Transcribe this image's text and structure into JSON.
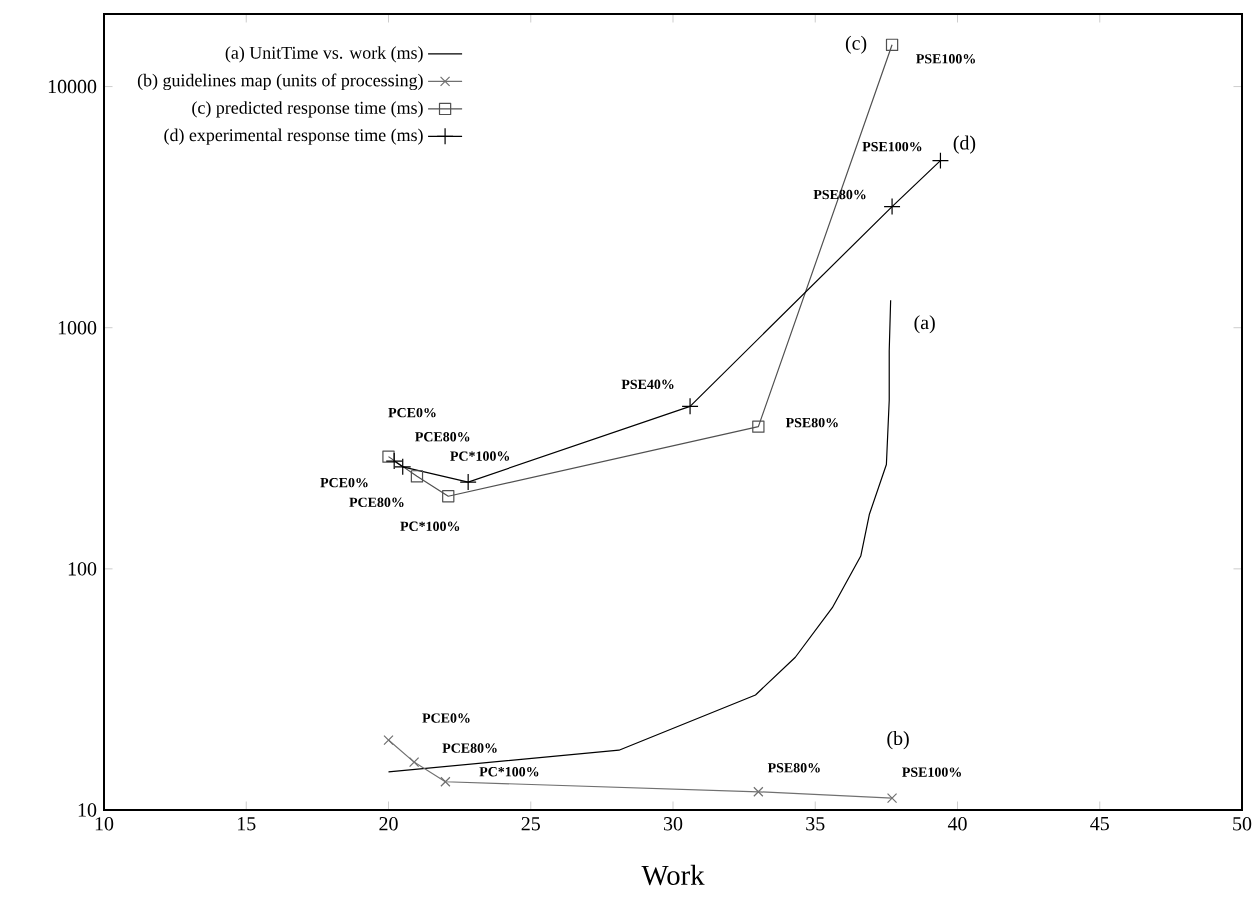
{
  "chart_data": {
    "type": "line",
    "xlabel": "Work",
    "xlim": [
      10,
      50
    ],
    "xticks": [
      10,
      15,
      20,
      25,
      30,
      35,
      40,
      45,
      50
    ],
    "ylim": [
      10,
      20000
    ],
    "yticks": [
      10,
      100,
      1000,
      10000
    ],
    "log": "y",
    "grid": false,
    "legend": "top left",
    "series": [
      {
        "name": "(a) UnitTime vs. work (ms)",
        "color": "#000000",
        "marker": "none",
        "x": [
          20.0,
          28.1,
          32.9,
          34.3,
          35.6,
          36.6,
          36.9,
          37.5,
          37.6,
          37.6,
          37.65
        ],
        "values": [
          14.4,
          17.7,
          30,
          43,
          69,
          113,
          168,
          271,
          500,
          805,
          1300
        ]
      },
      {
        "name": "(b) guidelines map (units of processing)",
        "color": "#707070",
        "marker": "cross",
        "x": [
          20.0,
          20.9,
          22.0,
          33.0,
          37.7
        ],
        "values": [
          19.5,
          15.8,
          13.1,
          11.9,
          11.2
        ]
      },
      {
        "name": "(c) predicted response time (ms)",
        "color": "#505050",
        "marker": "square",
        "x": [
          20.0,
          21.0,
          22.1,
          33.0,
          37.7
        ],
        "values": [
          292,
          242,
          200,
          389,
          14900
        ]
      },
      {
        "name": "(d) experimental response time (ms)",
        "color": "#000000",
        "marker": "plus",
        "x": [
          20.2,
          20.5,
          22.8,
          30.6,
          37.7,
          39.4
        ],
        "values": [
          280,
          265,
          229,
          472,
          3180,
          4930
        ]
      }
    ],
    "annotations": [
      {
        "text": "(a)",
        "x": 37.65,
        "y": 1300
      },
      {
        "text": "(b)",
        "x": 37.7,
        "y": 11.2
      },
      {
        "text": "(c)",
        "x": 37.7,
        "y": 14900
      },
      {
        "text": "(d)",
        "x": 39.4,
        "y": 4930
      },
      {
        "text": "PSE100%",
        "x": 37.7,
        "y": 14900
      },
      {
        "text": "PSE100%",
        "x": 39.4,
        "y": 4930
      },
      {
        "text": "PSE80%",
        "x": 37.7,
        "y": 3180
      },
      {
        "text": "PSE40%",
        "x": 30.6,
        "y": 472
      },
      {
        "text": "PSE80%",
        "x": 33.0,
        "y": 389
      },
      {
        "text": "PCE0%",
        "x": 20.0,
        "y": 292
      },
      {
        "text": "PCE80%",
        "x": 20.5,
        "y": 265
      },
      {
        "text": "PC*100%",
        "x": 22.8,
        "y": 229
      },
      {
        "text": "PCE0%",
        "x": 20.0,
        "y": 292
      },
      {
        "text": "PCE80%",
        "x": 21.0,
        "y": 242
      },
      {
        "text": "PC*100%",
        "x": 22.1,
        "y": 200
      },
      {
        "text": "PCE0%",
        "x": 20.0,
        "y": 19.5
      },
      {
        "text": "PCE80%",
        "x": 20.9,
        "y": 15.8
      },
      {
        "text": "PC*100%",
        "x": 22.0,
        "y": 13.1
      },
      {
        "text": "PSE80%",
        "x": 33.0,
        "y": 11.9
      },
      {
        "text": "PSE100%",
        "x": 37.7,
        "y": 11.2
      }
    ]
  }
}
